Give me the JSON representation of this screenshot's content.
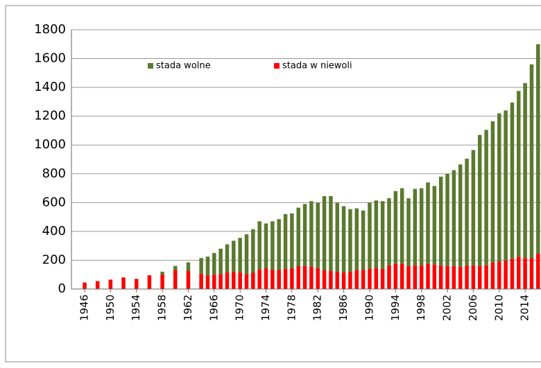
{
  "chart_data": {
    "type": "stacked_bar",
    "categories": [
      "1946",
      null,
      null,
      null,
      "1950",
      null,
      null,
      null,
      "1954",
      null,
      null,
      null,
      "1958",
      null,
      null,
      null,
      "1962",
      null,
      null,
      null,
      "1966",
      null,
      null,
      null,
      "1970",
      null,
      null,
      null,
      "1974",
      null,
      null,
      null,
      "1978",
      null,
      null,
      null,
      "1982",
      null,
      null,
      null,
      "1986",
      null,
      null,
      null,
      "1990",
      null,
      null,
      null,
      "1994",
      null,
      null,
      null,
      "1998",
      null,
      null,
      null,
      "2002",
      null,
      null,
      null,
      "2006",
      null,
      null,
      null,
      "2010",
      null,
      null,
      null,
      "2014",
      null,
      null
    ],
    "series": [
      {
        "name": "stada w niewoli",
        "color": "#ff0000",
        "values": [
          45,
          null,
          55,
          null,
          65,
          null,
          80,
          null,
          70,
          null,
          95,
          null,
          100,
          null,
          130,
          null,
          125,
          null,
          105,
          95,
          100,
          105,
          115,
          120,
          115,
          105,
          115,
          135,
          145,
          135,
          130,
          140,
          145,
          160,
          160,
          155,
          145,
          130,
          125,
          120,
          115,
          120,
          130,
          135,
          140,
          145,
          140,
          165,
          175,
          175,
          160,
          165,
          165,
          175,
          170,
          165,
          160,
          160,
          155,
          165,
          165,
          160,
          165,
          185,
          190,
          195,
          210,
          225,
          215,
          215,
          245
        ]
      },
      {
        "name": "stada wolne",
        "color": "#5a7a2e",
        "values": [
          0,
          null,
          0,
          null,
          0,
          null,
          0,
          null,
          0,
          null,
          0,
          null,
          20,
          null,
          30,
          null,
          60,
          null,
          110,
          130,
          150,
          175,
          195,
          215,
          240,
          275,
          300,
          335,
          310,
          335,
          355,
          380,
          380,
          405,
          430,
          455,
          455,
          515,
          520,
          480,
          460,
          435,
          430,
          410,
          460,
          470,
          470,
          465,
          505,
          525,
          470,
          530,
          535,
          565,
          545,
          615,
          640,
          665,
          710,
          740,
          800,
          910,
          940,
          980,
          1030,
          1045,
          1085,
          1150,
          1215,
          1345,
          1455
        ]
      }
    ],
    "ylim": [
      0,
      1800
    ],
    "yticks": [
      0,
      200,
      400,
      600,
      800,
      1000,
      1200,
      1400,
      1600,
      1800
    ],
    "grid": true
  }
}
